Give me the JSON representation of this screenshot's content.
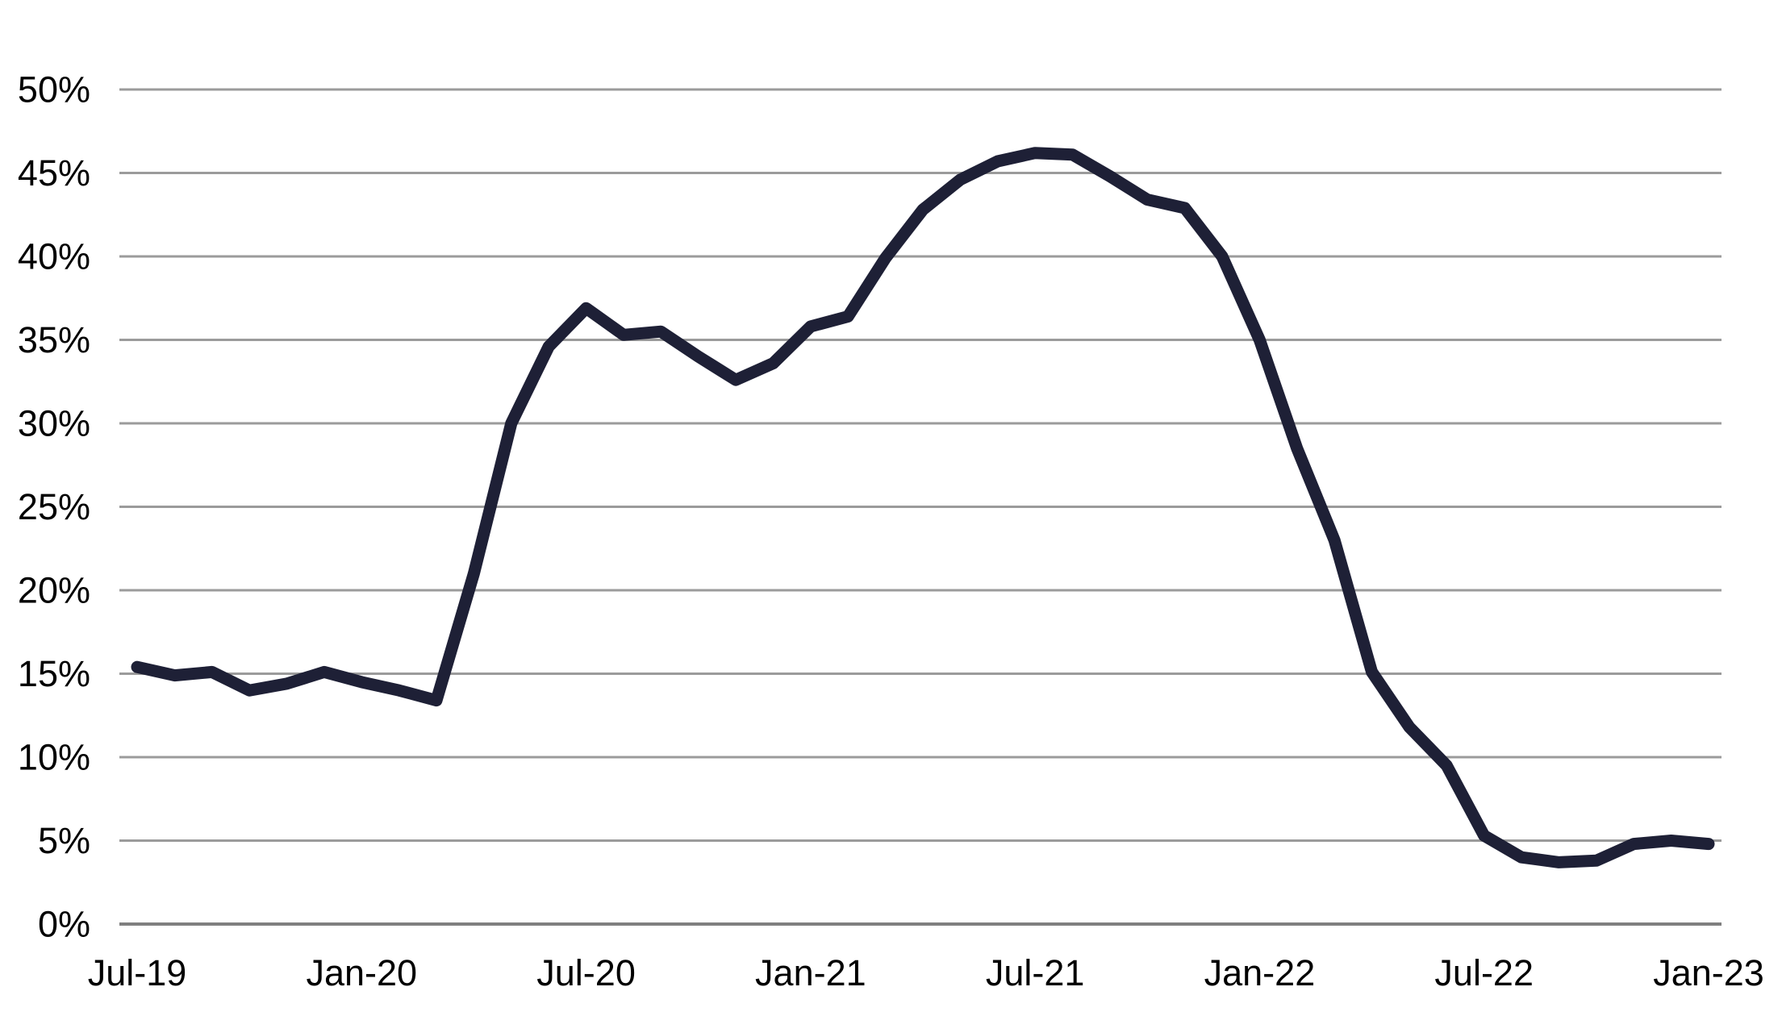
{
  "chart_data": {
    "type": "line",
    "title": "",
    "xlabel": "",
    "ylabel": "",
    "x": [
      "Jul-19",
      "Aug-19",
      "Sep-19",
      "Oct-19",
      "Nov-19",
      "Dec-19",
      "Jan-20",
      "Feb-20",
      "Mar-20",
      "Apr-20",
      "May-20",
      "Jun-20",
      "Jul-20",
      "Aug-20",
      "Sep-20",
      "Oct-20",
      "Nov-20",
      "Dec-20",
      "Jan-21",
      "Feb-21",
      "Mar-21",
      "Apr-21",
      "May-21",
      "Jun-21",
      "Jul-21",
      "Aug-21",
      "Sep-21",
      "Oct-21",
      "Nov-21",
      "Dec-21",
      "Jan-22",
      "Feb-22",
      "Mar-22",
      "Apr-22",
      "May-22",
      "Jun-22",
      "Jul-22",
      "Aug-22",
      "Sep-22",
      "Oct-22",
      "Nov-22",
      "Dec-22",
      "Jan-23"
    ],
    "values": [
      15.4,
      14.9,
      15.1,
      14.0,
      14.4,
      15.1,
      14.5,
      14.0,
      13.4,
      21.0,
      30.0,
      34.6,
      36.9,
      35.3,
      35.5,
      34.0,
      32.6,
      33.6,
      35.8,
      36.4,
      39.9,
      42.8,
      44.6,
      45.7,
      46.2,
      46.1,
      44.8,
      43.4,
      42.9,
      40.0,
      35.0,
      28.5,
      23.0,
      15.1,
      11.8,
      9.5,
      5.3,
      4.0,
      3.7,
      3.8,
      4.8,
      5.0,
      4.8
    ],
    "x_tick_labels": [
      "Jul-19",
      "Jan-20",
      "Jul-20",
      "Jan-21",
      "Jul-21",
      "Jan-22",
      "Jul-22",
      "Jan-23"
    ],
    "x_tick_every": 6,
    "ylim": [
      0,
      50
    ],
    "y_tick_step": 5,
    "y_tick_suffix": "%",
    "y_tick_labels": [
      "0%",
      "5%",
      "10%",
      "15%",
      "20%",
      "25%",
      "30%",
      "35%",
      "40%",
      "45%",
      "50%"
    ],
    "grid": "horizontal-only",
    "legend": "none",
    "colors": {
      "line": "#1e2036",
      "gridline": "#9b9b9b",
      "axis_line": "#7f7f7f",
      "tick_text": "#000000",
      "background": "#ffffff"
    }
  }
}
